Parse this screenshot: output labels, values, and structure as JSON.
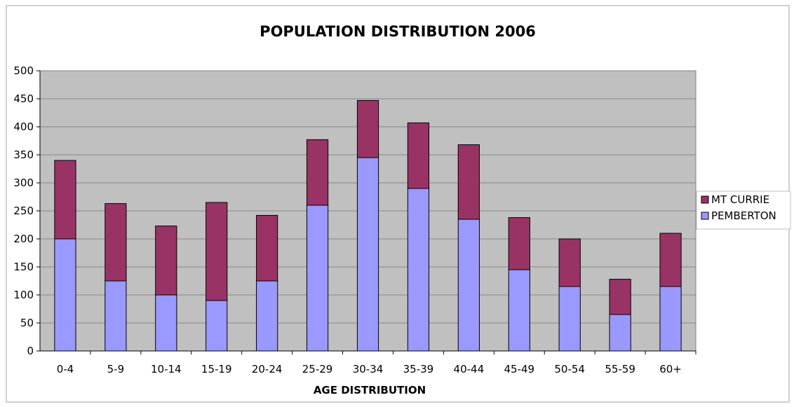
{
  "chart_data": {
    "type": "bar",
    "stacked": true,
    "title": "POPULATION DISTRIBUTION 2006",
    "xlabel": "AGE DISTRIBUTION",
    "ylabel": "",
    "ylim": [
      0,
      500
    ],
    "yticks": [
      0,
      50,
      100,
      150,
      200,
      250,
      300,
      350,
      400,
      450,
      500
    ],
    "grid": true,
    "legend_position": "right",
    "categories": [
      "0-4",
      "5-9",
      "10-14",
      "15-19",
      "20-24",
      "25-29",
      "30-34",
      "35-39",
      "40-44",
      "45-49",
      "50-54",
      "55-59",
      "60+"
    ],
    "series": [
      {
        "name": "PEMBERTON",
        "color": "#9999ff",
        "values": [
          200,
          125,
          100,
          90,
          125,
          260,
          345,
          290,
          235,
          145,
          115,
          65,
          115
        ]
      },
      {
        "name": "MT CURRIE",
        "color": "#993366",
        "values": [
          140,
          138,
          123,
          175,
          117,
          117,
          102,
          117,
          133,
          93,
          85,
          63,
          95
        ]
      }
    ],
    "legend_order": [
      "MT CURRIE",
      "PEMBERTON"
    ]
  }
}
